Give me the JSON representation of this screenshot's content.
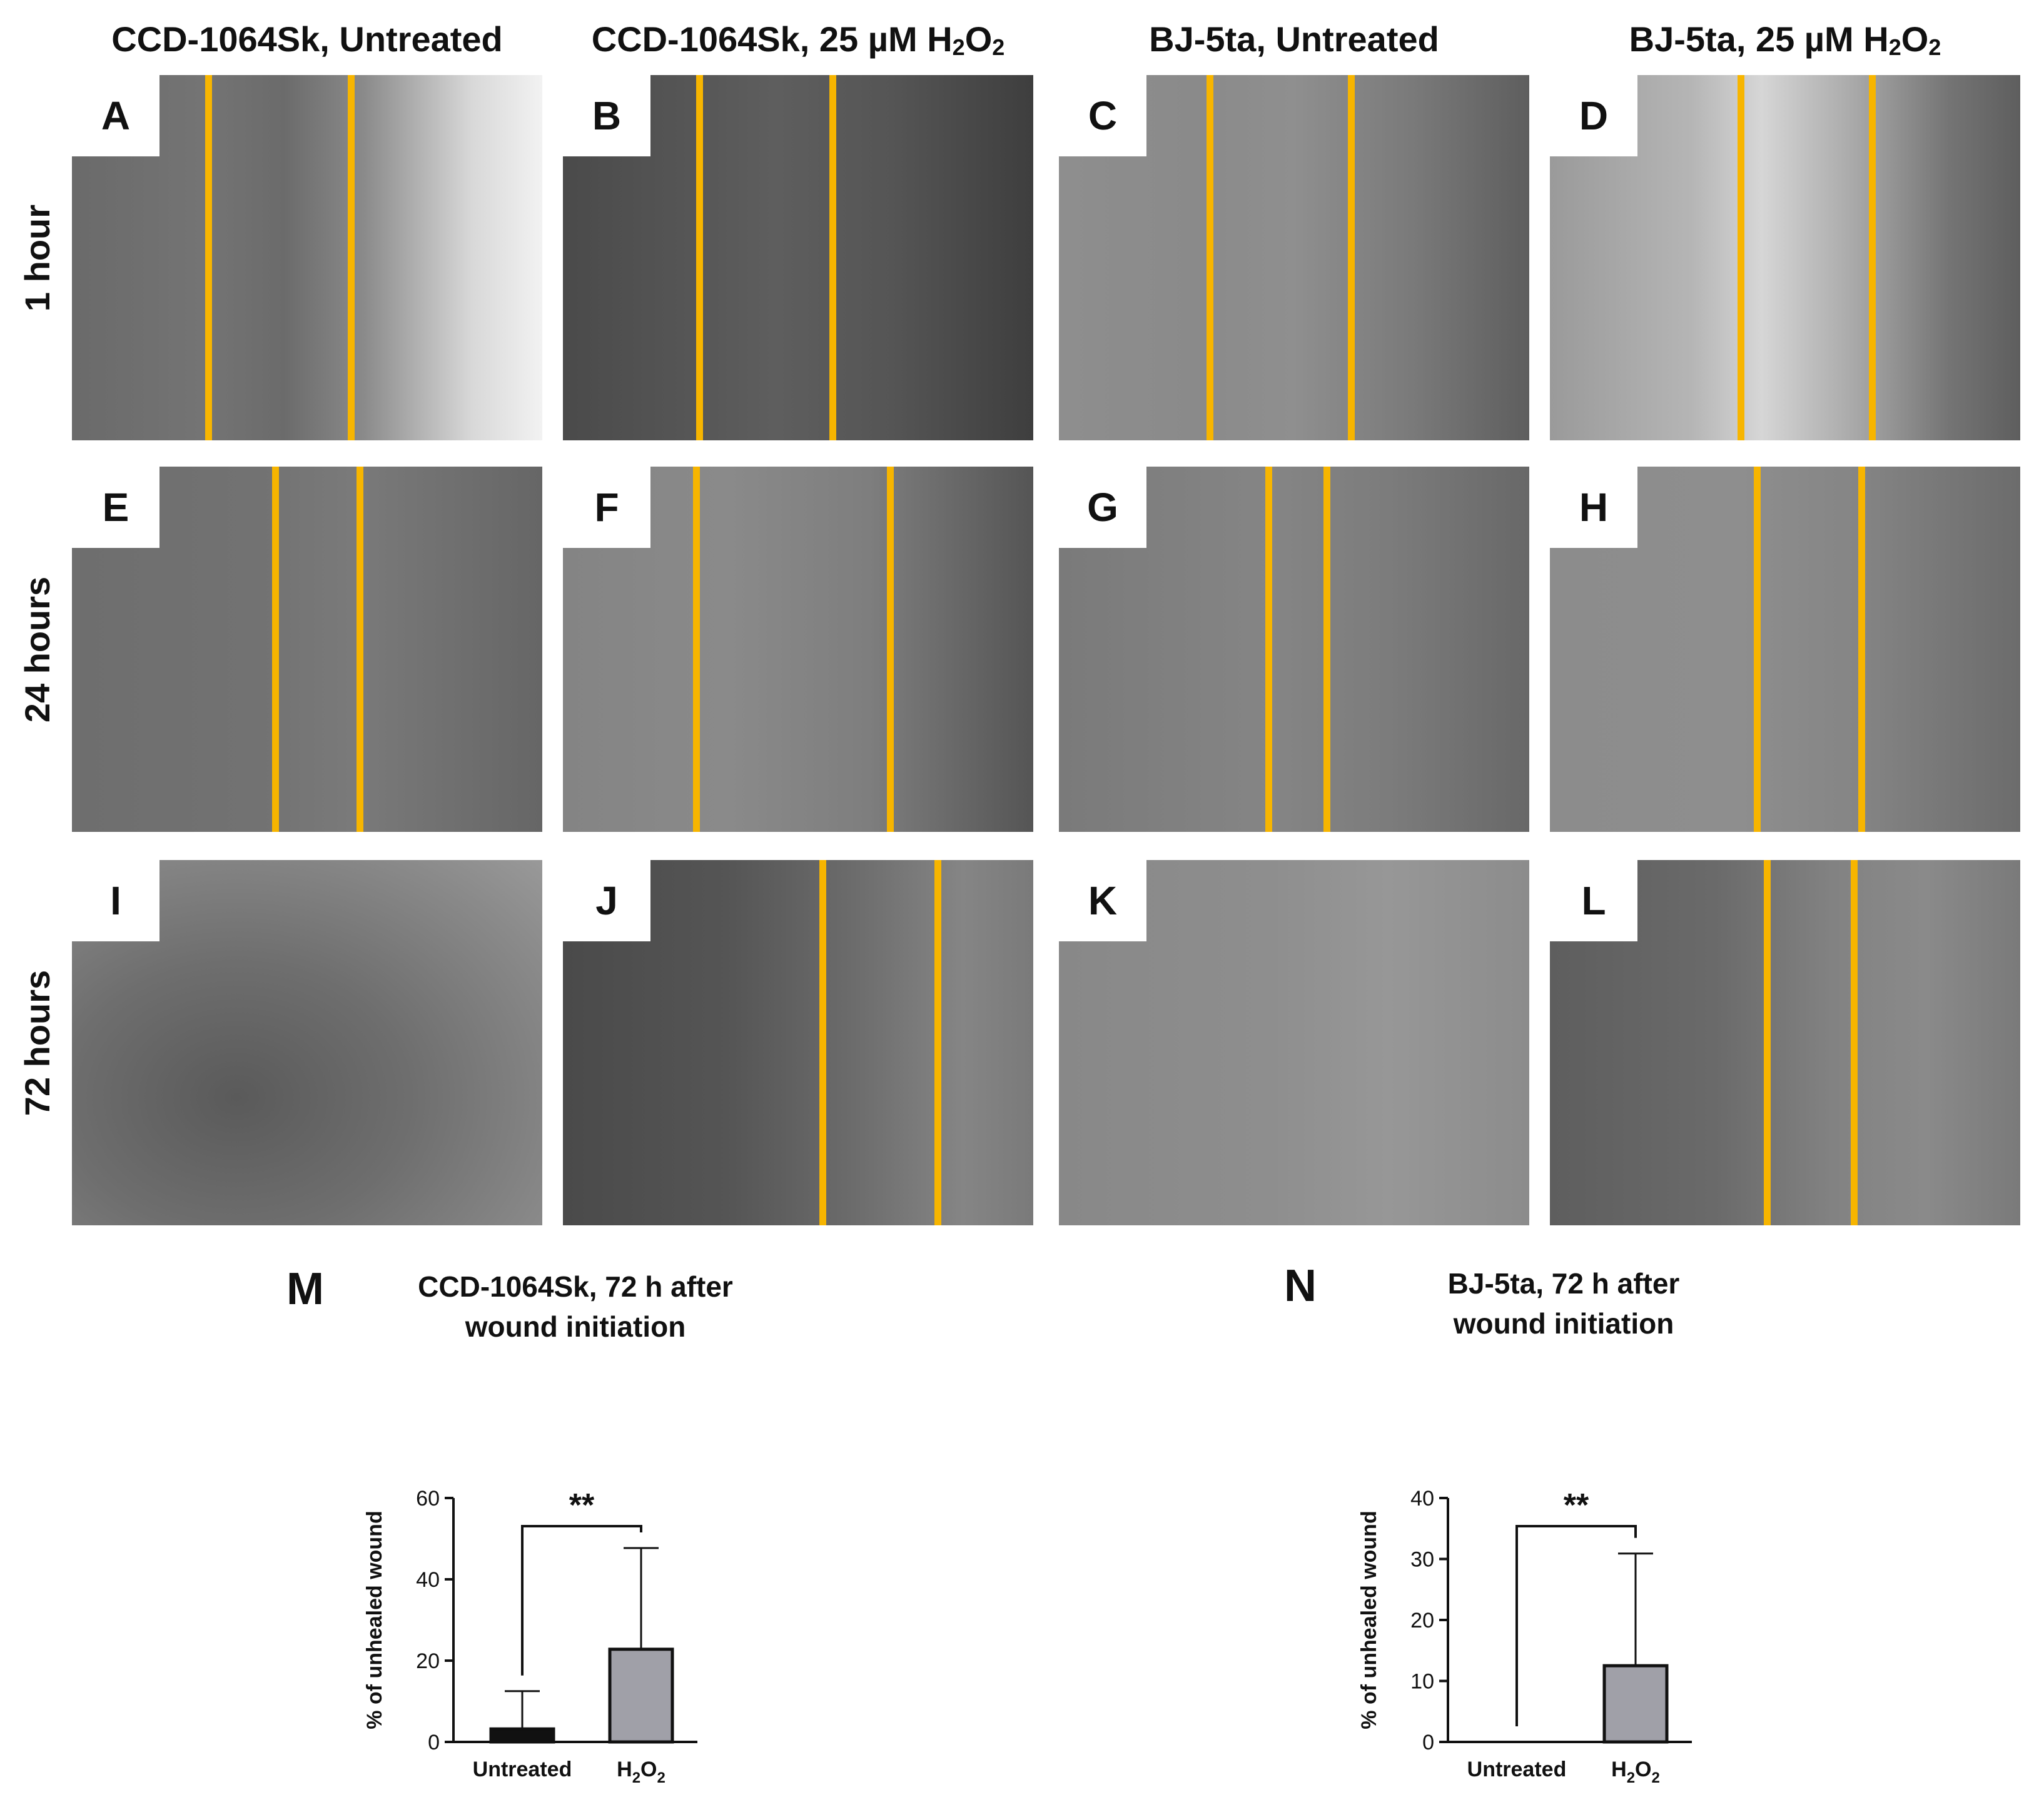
{
  "column_headers": [
    {
      "text": "CCD-1064Sk, Untreated",
      "has_h2o2": false
    },
    {
      "text": "CCD-1064Sk, 25 µM H",
      "has_h2o2": true
    },
    {
      "text": "BJ-5ta, Untreated",
      "has_h2o2": false
    },
    {
      "text": "BJ-5ta, 25 µM H",
      "has_h2o2": true
    }
  ],
  "row_labels": [
    "1 hour",
    "24 hours",
    "72 hours"
  ],
  "panels": [
    {
      "label": "A"
    },
    {
      "label": "B"
    },
    {
      "label": "C"
    },
    {
      "label": "D"
    },
    {
      "label": "E"
    },
    {
      "label": "F"
    },
    {
      "label": "G"
    },
    {
      "label": "H"
    },
    {
      "label": "I"
    },
    {
      "label": "J"
    },
    {
      "label": "K"
    },
    {
      "label": "L"
    }
  ],
  "colors": {
    "wound_line": "#f7b500",
    "bar_untreated": "#111111",
    "bar_h2o2": "#a0a0a8"
  },
  "chart_data": [
    {
      "type": "bar",
      "letter": "M",
      "title_lines": [
        "CCD-1064Sk, 72 h after",
        "wound initiation"
      ],
      "ylabel": "% of unhealed wound",
      "categories": [
        "Untreated",
        "H2O2"
      ],
      "values": [
        3.2,
        22.8
      ],
      "errors": [
        9.3,
        24.9
      ],
      "ylim": [
        0,
        60
      ],
      "yticks": [
        0,
        20,
        40,
        60
      ],
      "significance": "**"
    },
    {
      "type": "bar",
      "letter": "N",
      "title_lines": [
        "BJ-5ta, 72 h after",
        "wound initiation"
      ],
      "ylabel": "% of unhealed wound",
      "categories": [
        "Untreated",
        "H2O2"
      ],
      "values": [
        0,
        12.5
      ],
      "errors": [
        0,
        18.4
      ],
      "ylim": [
        0,
        40
      ],
      "yticks": [
        0,
        10,
        20,
        30,
        40
      ],
      "significance": "**"
    }
  ]
}
